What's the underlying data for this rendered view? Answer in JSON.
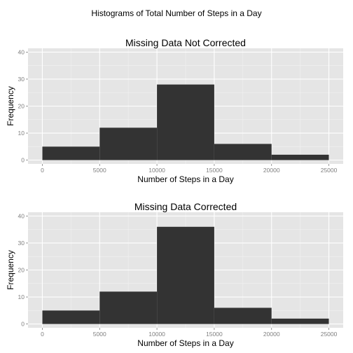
{
  "figure_title": "Histograms of Total Number of Steps in a Day",
  "colors": {
    "panel_background": "#e5e5e5",
    "grid_major": "#ffffff",
    "grid_minor": "#f2f2f2",
    "bar_fill": "#333333",
    "tick_text": "#7f7f7f"
  },
  "chart_data": [
    {
      "type": "bar",
      "title": "Missing Data Not Corrected",
      "xlabel": "Number of Steps in a Day",
      "ylabel": "Frequency",
      "bins": [
        [
          0,
          5000
        ],
        [
          5000,
          10000
        ],
        [
          10000,
          15000
        ],
        [
          15000,
          20000
        ],
        [
          20000,
          25000
        ]
      ],
      "values": [
        5,
        12,
        28,
        6,
        2
      ],
      "xlim": [
        -1250,
        26250
      ],
      "ylim": [
        -1.4,
        41.4
      ],
      "x_ticks": [
        "0",
        "5000",
        "10000",
        "15000",
        "20000",
        "25000"
      ],
      "y_ticks": [
        "0",
        "10",
        "20",
        "30",
        "40"
      ],
      "grid": true
    },
    {
      "type": "bar",
      "title": "Missing Data Corrected",
      "xlabel": "Number of Steps in a Day",
      "ylabel": "Frequency",
      "bins": [
        [
          0,
          5000
        ],
        [
          5000,
          10000
        ],
        [
          10000,
          15000
        ],
        [
          15000,
          20000
        ],
        [
          20000,
          25000
        ]
      ],
      "values": [
        5,
        12,
        36,
        6,
        2
      ],
      "xlim": [
        -1250,
        26250
      ],
      "ylim": [
        -1.4,
        41.4
      ],
      "x_ticks": [
        "0",
        "5000",
        "10000",
        "15000",
        "20000",
        "25000"
      ],
      "y_ticks": [
        "0",
        "10",
        "20",
        "30",
        "40"
      ],
      "grid": true
    }
  ]
}
